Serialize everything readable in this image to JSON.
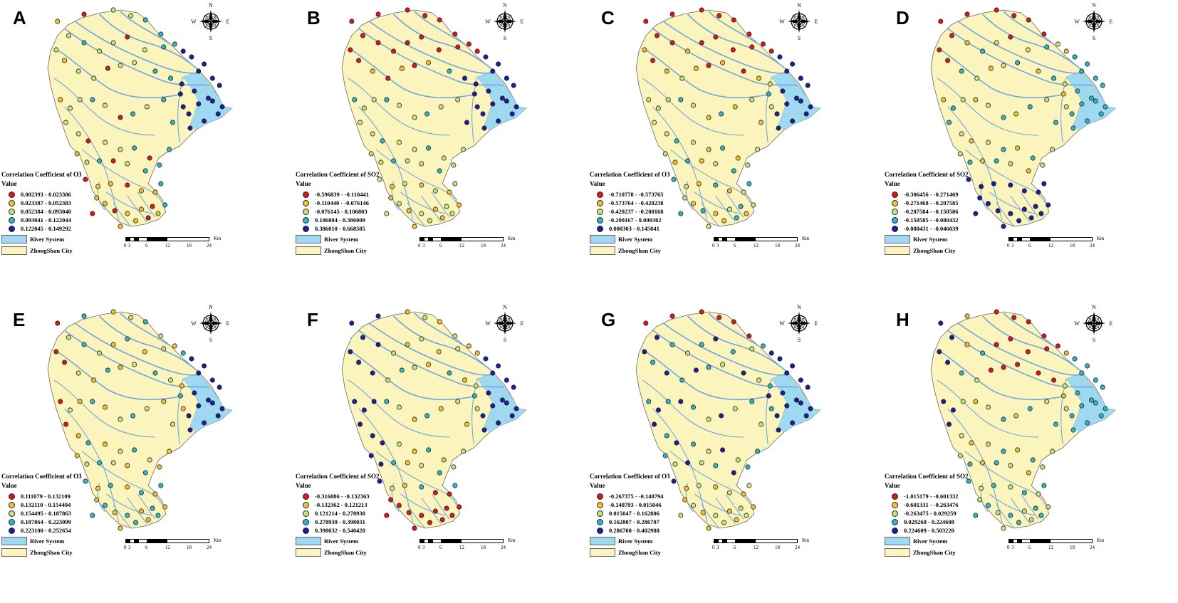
{
  "common": {
    "compass": {
      "n": "N",
      "s": "S",
      "w": "W",
      "e": "E"
    },
    "value_label": "Value",
    "river_label": "River System",
    "city_label": "ZhongShan City",
    "scale_unit": "Km",
    "scale_ticks": [
      "0",
      "3",
      "6",
      "12",
      "18",
      "24"
    ],
    "class_colors": [
      "#d7191c",
      "#f2c12e",
      "#c9e27a",
      "#2fb7c4",
      "#1b1f9a"
    ],
    "river_color": "#9fd8f1",
    "city_color": "#fbf4bd"
  },
  "panels": [
    {
      "letter": "A",
      "title": "Correlation Coefficient of O3",
      "classes": [
        "0.002393 - 0.023386",
        "0.023387 - 0.052383",
        "0.052384 - 0.093040",
        "0.093041 - 0.122044",
        "0.122045 - 0.149292"
      ]
    },
    {
      "letter": "B",
      "title": "Correlation Coefficient of SO2",
      "classes": [
        "-0.596839 - -0.110441",
        "-0.110440 - -0.076146",
        "-0.076145 - 0.106803",
        "0.106804 - 0.386009",
        "0.386010 - 0.668585"
      ]
    },
    {
      "letter": "C",
      "title": "Correlation Coefficient of O3",
      "classes": [
        "-0.710778 - -0.573765",
        "-0.573764 - -0.420238",
        "-0.420237 - -0.200168",
        "-0.200167 - 0.000302",
        "0.000303 - 0.145041"
      ]
    },
    {
      "letter": "D",
      "title": "Correlation Coefficient of SO2",
      "classes": [
        "-0.306456 - -0.271469",
        "-0.271468 - -0.207585",
        "-0.207584 - -0.150586",
        "-0.150585 - -0.080432",
        "-0.080431 - -0.046039"
      ]
    },
    {
      "letter": "E",
      "title": "Correlation Coefficient of O3",
      "classes": [
        "0.111079 - 0.132109",
        "0.132110 - 0.154494",
        "0.154495 - 0.187863",
        "0.187864 - 0.223099",
        "0.223100 - 0.252654"
      ]
    },
    {
      "letter": "F",
      "title": "Correlation Coefficient of SO2",
      "classes": [
        "-0.316086 - -0.132363",
        "-0.132362 - 0.121213",
        "0.121214 - 0.278938",
        "0.278939 - 0.398031",
        "0.398032 - 0.540428"
      ]
    },
    {
      "letter": "G",
      "title": "Correlation Coefficient of O3",
      "classes": [
        "-0.267375 - -0.140794",
        "-0.140793 - 0.015046",
        "0.015047 - 0.162806",
        "0.162807 - 0.286707",
        "0.286708 - 0.402988"
      ]
    },
    {
      "letter": "H",
      "title": "Correlation Coefficient of SO2",
      "classes": [
        "-1.015179 - -0.601332",
        "-0.601331 - -0.263476",
        "-0.263475 - 0.029259",
        "0.029260 - 0.224608",
        "0.224609 - 0.503220"
      ]
    }
  ]
}
